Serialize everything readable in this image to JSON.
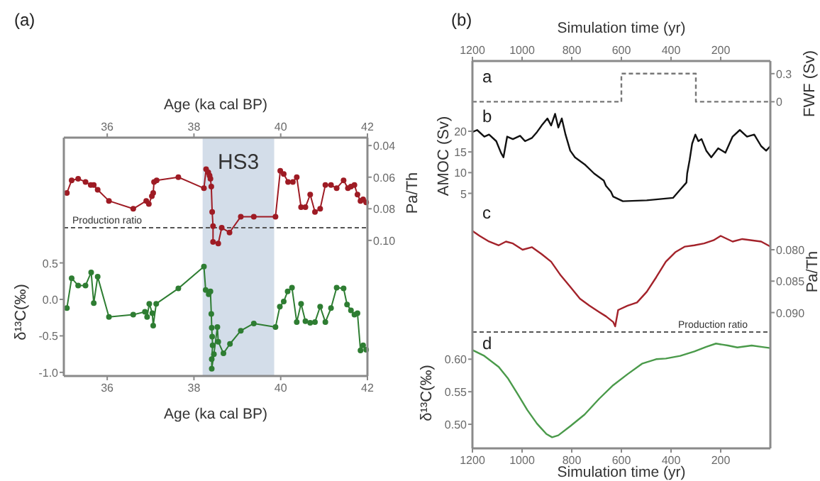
{
  "chart_data": [
    {
      "type": "line",
      "xlabel": "Age (ka cal BP)",
      "ylabel": "Pa/Th",
      "annotations": [
        "(a)"
      ],
      "xlim": [
        35,
        42
      ],
      "xticks": [
        36,
        38,
        40,
        42
      ],
      "ylim": [
        0.105,
        0.035
      ],
      "yticks": [
        {
          "value": 0.04,
          "label": "0.04"
        },
        {
          "value": 0.06,
          "label": "0.06"
        },
        {
          "value": 0.08,
          "label": "0.08"
        },
        {
          "value": 0.1,
          "label": "0.10"
        }
      ],
      "marker": "circle",
      "bands": [
        {
          "axis": "x",
          "from": 38.2,
          "to": 39.85,
          "label": "HS3",
          "color": "#d3dde9"
        }
      ],
      "ref_lines": [
        {
          "axis": "y",
          "value": 0.092,
          "label": "Production ratio",
          "color": "#555555",
          "line_style": "dashed"
        }
      ],
      "series": [
        {
          "color": "#9e1b24",
          "x": [
            35.07,
            35.18,
            35.33,
            35.5,
            35.62,
            35.69,
            35.78,
            36.04,
            36.6,
            36.9,
            36.96,
            37.03,
            37.06,
            37.08,
            37.14,
            37.64,
            38.23,
            38.28,
            38.33,
            38.36,
            38.38,
            38.4,
            38.42,
            38.44,
            38.44,
            38.56,
            38.64,
            38.82,
            39.08,
            39.38,
            39.88,
            39.99,
            40.07,
            40.17,
            40.28,
            40.37,
            40.47,
            40.57,
            40.68,
            40.79,
            40.91,
            41.03,
            41.16,
            41.29,
            41.45,
            41.55,
            41.62,
            41.7,
            41.77,
            41.84,
            41.9,
            41.97
          ],
          "values": [
            0.07,
            0.062,
            0.061,
            0.063,
            0.065,
            0.065,
            0.068,
            0.075,
            0.08,
            0.075,
            0.077,
            0.072,
            0.07,
            0.063,
            0.062,
            0.06,
            0.067,
            0.055,
            0.057,
            0.059,
            0.061,
            0.066,
            0.082,
            0.091,
            0.101,
            0.102,
            0.092,
            0.095,
            0.085,
            0.085,
            0.085,
            0.056,
            0.058,
            0.063,
            0.063,
            0.06,
            0.079,
            0.079,
            0.071,
            0.082,
            0.08,
            0.065,
            0.065,
            0.067,
            0.062,
            0.067,
            0.066,
            0.065,
            0.071,
            0.075,
            0.074,
            0.076
          ]
        }
      ]
    },
    {
      "type": "line",
      "xlabel": "Age (ka cal BP)",
      "ylabel": "δ¹³C(‰)",
      "xlim": [
        35,
        42
      ],
      "xticks": [
        36,
        38,
        40,
        42
      ],
      "ylim": [
        -1.05,
        0.7
      ],
      "yticks": [
        {
          "value": -1,
          "label": "-1.0"
        },
        {
          "value": -0.5,
          "label": "-0.5"
        },
        {
          "value": 0,
          "label": "0.0"
        },
        {
          "value": 0.5,
          "label": "0.5"
        }
      ],
      "marker": "circle",
      "bands": [
        {
          "axis": "x",
          "from": 38.2,
          "to": 39.85,
          "color": "#d3dde9"
        }
      ],
      "series": [
        {
          "color": "#2e7d32",
          "x": [
            35.07,
            35.18,
            35.33,
            35.5,
            35.63,
            35.69,
            35.78,
            36.04,
            36.6,
            36.87,
            36.92,
            36.97,
            37.04,
            37.06,
            37.13,
            37.64,
            38.23,
            38.27,
            38.34,
            38.38,
            38.4,
            38.41,
            38.42,
            38.43,
            38.41,
            38.41,
            38.46,
            38.54,
            38.56,
            38.68,
            38.83,
            39.08,
            39.38,
            39.88,
            39.98,
            40.07,
            40.16,
            40.26,
            40.37,
            40.47,
            40.57,
            40.68,
            40.79,
            40.91,
            41.03,
            41.16,
            41.29,
            41.45,
            41.53,
            41.62,
            41.7,
            41.77,
            41.84,
            41.9,
            41.97
          ],
          "values": [
            -0.12,
            0.29,
            0.19,
            0.19,
            0.37,
            -0.05,
            0.31,
            -0.24,
            -0.21,
            -0.17,
            -0.24,
            -0.06,
            -0.19,
            -0.36,
            -0.06,
            0.15,
            0.45,
            0.13,
            0.07,
            0.11,
            -0.2,
            -0.39,
            -0.51,
            -0.63,
            -0.82,
            -0.95,
            -0.75,
            -0.38,
            -0.58,
            -0.74,
            -0.61,
            -0.43,
            -0.33,
            -0.38,
            -0.1,
            -0.03,
            0.11,
            0.16,
            -0.31,
            -0.06,
            -0.3,
            -0.32,
            -0.31,
            -0.1,
            -0.31,
            -0.12,
            0.16,
            0.15,
            -0.07,
            -0.15,
            -0.21,
            -0.19,
            -0.7,
            -0.63,
            -0.69
          ]
        }
      ]
    },
    {
      "type": "step",
      "xlabel": "Simulation time (yr)",
      "ylabel": "FWF (Sv)",
      "annotations": [
        "(b)",
        "a"
      ],
      "xlim": [
        1200,
        0
      ],
      "xticks": [
        1200,
        1000,
        800,
        600,
        400,
        200
      ],
      "ylim": [
        -0.05,
        0.435
      ],
      "yticks": [
        0,
        0.3
      ],
      "line_style": "dashed",
      "series": [
        {
          "color": "#777777",
          "x": [
            1200,
            600,
            300,
            0
          ],
          "values": [
            0,
            0.3,
            0,
            0
          ]
        }
      ]
    },
    {
      "type": "line",
      "ylabel": "AMOC (Sv)",
      "annotations": [
        "b"
      ],
      "xlim": [
        1200,
        0
      ],
      "ylim": [
        2,
        26
      ],
      "yticks": [
        5,
        10,
        15,
        20
      ],
      "tick_labels": "y",
      "series": [
        {
          "color": "#111111",
          "x": [
            1200,
            1181,
            1152,
            1133,
            1104,
            1085,
            1075,
            1060,
            1037,
            1008,
            988,
            960,
            940,
            921,
            898,
            883,
            867,
            854,
            840,
            825,
            806,
            787,
            748,
            710,
            671,
            662,
            642,
            633,
            594,
            498,
            392,
            363,
            338,
            335,
            325,
            315,
            302,
            290,
            277,
            258,
            238,
            210,
            181,
            152,
            123,
            94,
            65,
            37,
            17,
            0
          ],
          "values": [
            19.8,
            20.3,
            18.7,
            19.2,
            17.6,
            14.8,
            13.7,
            18.7,
            18.1,
            18.9,
            17.6,
            18.4,
            19.8,
            21.4,
            23.1,
            21.4,
            24.2,
            20.9,
            23.1,
            19.2,
            15.3,
            13.7,
            12,
            9.8,
            8.1,
            6.8,
            5.4,
            4.2,
            3.1,
            3.3,
            3.9,
            5.9,
            7.6,
            9.8,
            13.1,
            17,
            19.2,
            17.6,
            18.1,
            15.3,
            13.7,
            15.9,
            14.8,
            18.7,
            20.3,
            18.7,
            19.2,
            16.4,
            15.3,
            16.4
          ]
        }
      ]
    },
    {
      "type": "line",
      "ylabel": "Pa/Th",
      "annotations": [
        "c"
      ],
      "xlim": [
        1200,
        0
      ],
      "ylim": [
        0.094,
        0.073
      ],
      "yticks": [
        {
          "value": 0.08,
          "label": "0.080"
        },
        {
          "value": 0.085,
          "label": "0.085"
        },
        {
          "value": 0.09,
          "label": "0.090"
        }
      ],
      "tick_labels": "y",
      "ref_lines": [
        {
          "axis": "y",
          "value": 0.0931,
          "label": "Production ratio",
          "color": "#555555",
          "line_style": "dashed"
        }
      ],
      "series": [
        {
          "color": "#a3222a",
          "x": [
            1200,
            1171,
            1133,
            1094,
            1065,
            1037,
            998,
            960,
            921,
            883,
            844,
            806,
            767,
            729,
            690,
            662,
            633,
            625,
            613,
            575,
            537,
            498,
            460,
            421,
            383,
            344,
            306,
            267,
            229,
            200,
            152,
            113,
            75,
            37,
            0
          ],
          "values": [
            0.077,
            0.0778,
            0.0787,
            0.0793,
            0.0787,
            0.079,
            0.08,
            0.0796,
            0.0807,
            0.0819,
            0.0841,
            0.0859,
            0.0878,
            0.0889,
            0.0899,
            0.0906,
            0.0915,
            0.0922,
            0.0896,
            0.0889,
            0.0884,
            0.0867,
            0.0844,
            0.0819,
            0.0804,
            0.0795,
            0.0793,
            0.079,
            0.0785,
            0.0778,
            0.0787,
            0.0783,
            0.0785,
            0.0787,
            0.0795
          ]
        }
      ]
    },
    {
      "type": "line",
      "xlabel": "Simulation time (yr)",
      "ylabel": "δ¹³C(‰)",
      "annotations": [
        "d"
      ],
      "xlim": [
        1200,
        0
      ],
      "xticks": [
        1200,
        1000,
        800,
        600,
        400,
        200
      ],
      "ylim": [
        0.463,
        0.633
      ],
      "yticks": [
        {
          "value": 0.5,
          "label": "0.50"
        },
        {
          "value": 0.55,
          "label": "0.55"
        },
        {
          "value": 0.6,
          "label": "0.60"
        }
      ],
      "series": [
        {
          "color": "#4a9a4a",
          "x": [
            1200,
            1152,
            1094,
            1056,
            1017,
            979,
            940,
            902,
            879,
            854,
            806,
            748,
            690,
            633,
            575,
            517,
            460,
            421,
            363,
            306,
            258,
            219,
            171,
            133,
            75,
            37,
            0
          ],
          "values": [
            0.614,
            0.605,
            0.588,
            0.57,
            0.546,
            0.522,
            0.501,
            0.485,
            0.48,
            0.483,
            0.497,
            0.515,
            0.539,
            0.56,
            0.577,
            0.593,
            0.6,
            0.601,
            0.605,
            0.612,
            0.619,
            0.624,
            0.621,
            0.618,
            0.621,
            0.619,
            0.617
          ]
        }
      ]
    }
  ]
}
